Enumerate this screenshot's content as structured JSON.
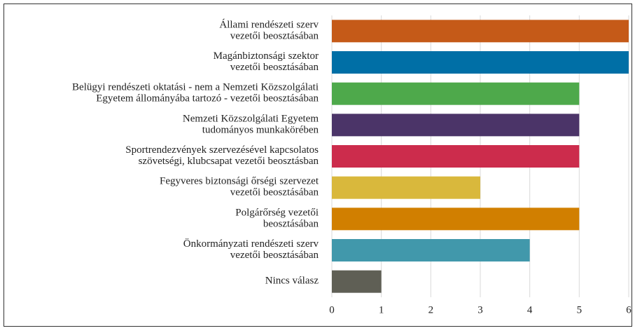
{
  "chart_data": {
    "type": "bar",
    "orientation": "horizontal",
    "categories": [
      [
        "Állami rendészeti szerv",
        "vezetői beosztásában"
      ],
      [
        "Magánbiztonsági szektor",
        "vezetői beosztásában"
      ],
      [
        "Belügyi rendészeti oktatási - nem a Nemzeti Közszolgálati",
        "Egyetem állományába tartozó - vezetői beosztásában"
      ],
      [
        "Nemzeti Közszolgálati Egyetem",
        "tudományos munkakörében"
      ],
      [
        "Sportrendezvények szervezésével kapcsolatos",
        "szövetségi, klubcsapat vezetői beosztásban"
      ],
      [
        "Fegyveres biztonsági őrségi szervezet",
        "vezetői beosztásában"
      ],
      [
        "Polgárőrség vezetői",
        "beosztásában"
      ],
      [
        "Önkormányzati rendészeti szerv",
        "vezetői beosztásában"
      ],
      [
        "Nincs válasz"
      ]
    ],
    "values": [
      6,
      6,
      5,
      5,
      5,
      3,
      5,
      4,
      1
    ],
    "colors": [
      "#c55a18",
      "#006fa6",
      "#4ea94b",
      "#4b3468",
      "#cc2c4c",
      "#d9b83c",
      "#d17f00",
      "#4198ab",
      "#5f5f55"
    ],
    "xlim": [
      0,
      6
    ],
    "xticks": [
      0,
      1,
      2,
      3,
      4,
      5,
      6
    ],
    "grid": true
  }
}
